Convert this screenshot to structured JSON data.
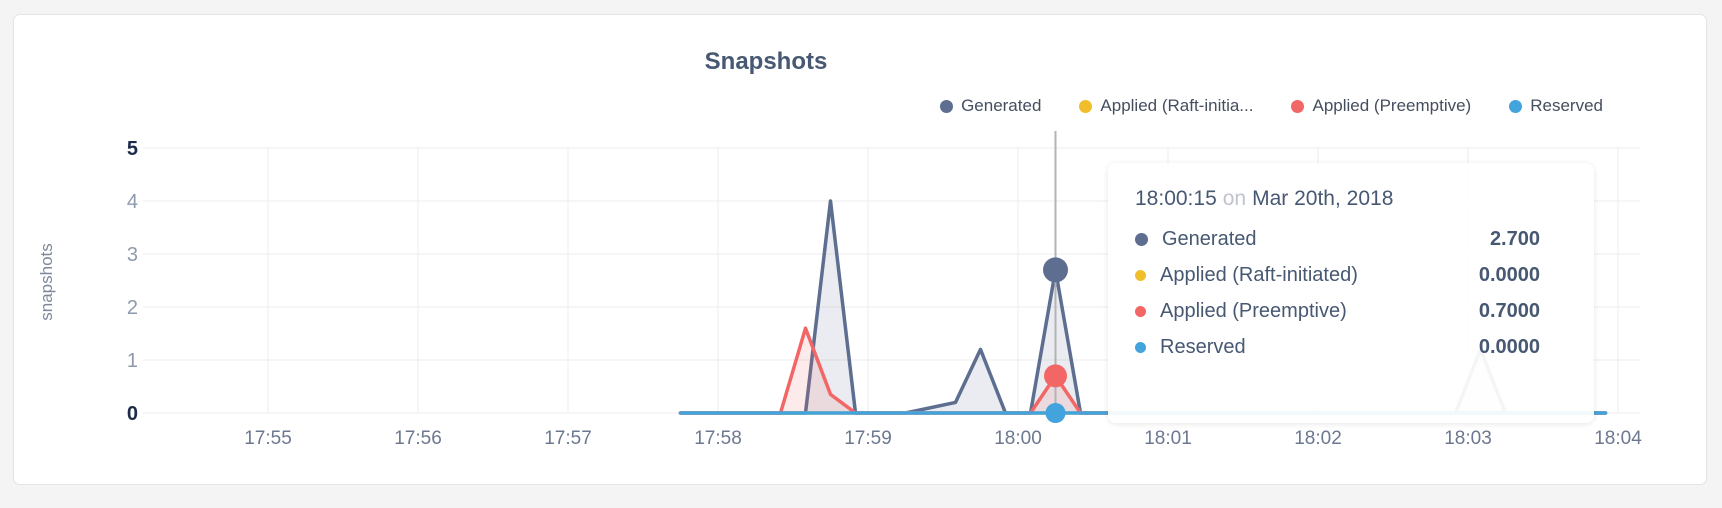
{
  "chart": {
    "title": "Snapshots",
    "y_axis_title": "snapshots",
    "legend": {
      "items": [
        {
          "label": "Generated",
          "color": "#5d6e90"
        },
        {
          "label": "Applied (Raft-initia...",
          "color": "#f1be2b"
        },
        {
          "label": "Applied (Preemptive)",
          "color": "#f26666"
        },
        {
          "label": "Reserved",
          "color": "#42a3dd"
        }
      ]
    }
  },
  "chart_data": {
    "type": "line",
    "title": "Snapshots",
    "xlabel": "",
    "ylabel": "snapshots",
    "ylim": [
      0,
      5
    ],
    "y_ticks": [
      0,
      1,
      2,
      3,
      4,
      5
    ],
    "x_ticks": [
      "17:55",
      "17:56",
      "17:57",
      "17:58",
      "17:59",
      "18:00",
      "18:01",
      "18:02",
      "18:03",
      "18:04"
    ],
    "grid": true,
    "legend_position": "top-right",
    "series": [
      {
        "name": "Generated",
        "color": "#5d6e90",
        "points": [
          [
            "17:57:45",
            0
          ],
          [
            "17:58:35",
            0
          ],
          [
            "17:58:45",
            4
          ],
          [
            "17:58:55",
            0
          ],
          [
            "17:59:15",
            0
          ],
          [
            "17:59:35",
            0.2
          ],
          [
            "17:59:45",
            1.2
          ],
          [
            "17:59:55",
            0
          ],
          [
            "18:00:05",
            0
          ],
          [
            "18:00:15",
            2.7
          ],
          [
            "18:00:25",
            0
          ],
          [
            "18:02:55",
            0
          ],
          [
            "18:03:05",
            1.2
          ],
          [
            "18:03:15",
            0
          ],
          [
            "18:03:55",
            0
          ]
        ]
      },
      {
        "name": "Applied (Raft-initiated)",
        "color": "#f1be2b",
        "points": [
          [
            "17:57:45",
            0
          ],
          [
            "18:03:55",
            0
          ]
        ]
      },
      {
        "name": "Applied (Preemptive)",
        "color": "#f26666",
        "points": [
          [
            "17:57:45",
            0
          ],
          [
            "17:58:25",
            0
          ],
          [
            "17:58:35",
            1.6
          ],
          [
            "17:58:45",
            0.35
          ],
          [
            "17:58:55",
            0
          ],
          [
            "18:00:05",
            0
          ],
          [
            "18:00:15",
            0.7
          ],
          [
            "18:00:25",
            0
          ],
          [
            "18:03:55",
            0
          ]
        ]
      },
      {
        "name": "Reserved",
        "color": "#42a3dd",
        "points": [
          [
            "17:57:45",
            0
          ],
          [
            "18:03:55",
            0
          ]
        ]
      }
    ],
    "hover": {
      "time": "18:00:15",
      "markers": [
        {
          "series": "Generated",
          "value": 2.7
        },
        {
          "series": "Applied (Raft-initiated)",
          "value": 0
        },
        {
          "series": "Applied (Preemptive)",
          "value": 0.7
        },
        {
          "series": "Reserved",
          "value": 0
        }
      ]
    }
  },
  "tooltip": {
    "time": "18:00:15",
    "conjunction": "on",
    "date": "Mar 20th, 2018",
    "rows": [
      {
        "label": "Generated",
        "value": "2.700",
        "color": "#5d6e90"
      },
      {
        "label": "Applied (Raft-initiated)",
        "value": "0.0000",
        "color": "#f1be2b"
      },
      {
        "label": "Applied (Preemptive)",
        "value": "0.7000",
        "color": "#f26666"
      },
      {
        "label": "Reserved",
        "value": "0.0000",
        "color": "#42a3dd"
      }
    ]
  }
}
